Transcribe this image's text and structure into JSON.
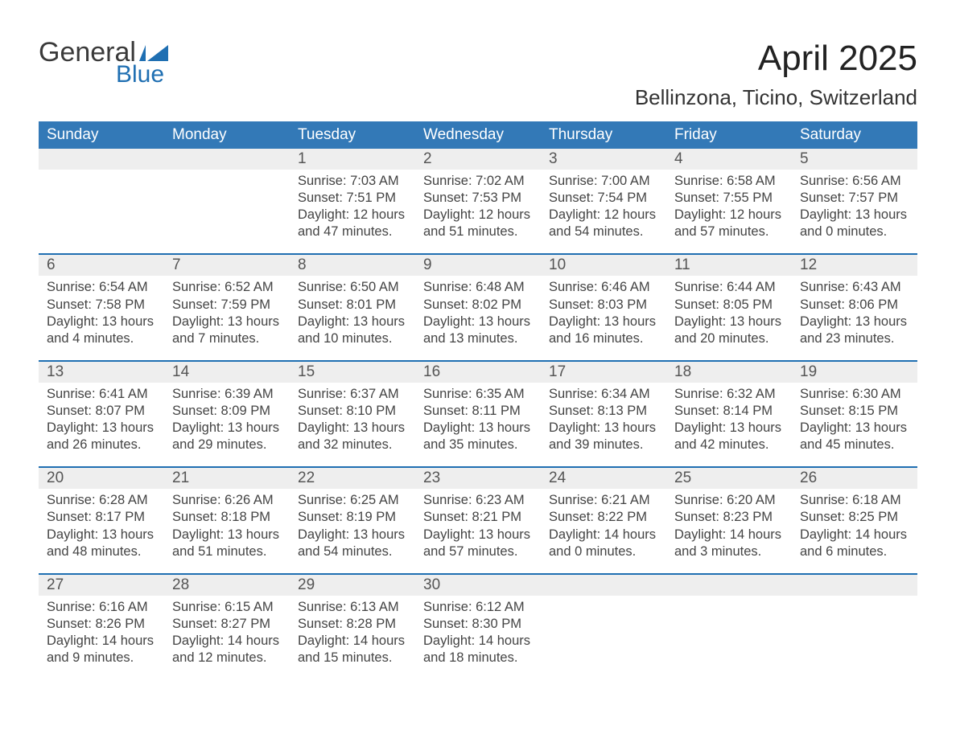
{
  "logo": {
    "general": "General",
    "blue": "Blue"
  },
  "title": "April 2025",
  "location": "Bellinzona, Ticino, Switzerland",
  "colors": {
    "header_blue": "#3379b7",
    "accent_blue": "#1f6fb2",
    "row_stripe": "#eeeeee",
    "logo_blue": "#1f6fb2",
    "logo_dark": "#3a3a3a"
  },
  "weekdays": [
    "Sunday",
    "Monday",
    "Tuesday",
    "Wednesday",
    "Thursday",
    "Friday",
    "Saturday"
  ],
  "weeks": [
    [
      null,
      null,
      {
        "n": "1",
        "sunrise": "Sunrise: 7:03 AM",
        "sunset": "Sunset: 7:51 PM",
        "day1": "Daylight: 12 hours",
        "day2": "and 47 minutes."
      },
      {
        "n": "2",
        "sunrise": "Sunrise: 7:02 AM",
        "sunset": "Sunset: 7:53 PM",
        "day1": "Daylight: 12 hours",
        "day2": "and 51 minutes."
      },
      {
        "n": "3",
        "sunrise": "Sunrise: 7:00 AM",
        "sunset": "Sunset: 7:54 PM",
        "day1": "Daylight: 12 hours",
        "day2": "and 54 minutes."
      },
      {
        "n": "4",
        "sunrise": "Sunrise: 6:58 AM",
        "sunset": "Sunset: 7:55 PM",
        "day1": "Daylight: 12 hours",
        "day2": "and 57 minutes."
      },
      {
        "n": "5",
        "sunrise": "Sunrise: 6:56 AM",
        "sunset": "Sunset: 7:57 PM",
        "day1": "Daylight: 13 hours",
        "day2": "and 0 minutes."
      }
    ],
    [
      {
        "n": "6",
        "sunrise": "Sunrise: 6:54 AM",
        "sunset": "Sunset: 7:58 PM",
        "day1": "Daylight: 13 hours",
        "day2": "and 4 minutes."
      },
      {
        "n": "7",
        "sunrise": "Sunrise: 6:52 AM",
        "sunset": "Sunset: 7:59 PM",
        "day1": "Daylight: 13 hours",
        "day2": "and 7 minutes."
      },
      {
        "n": "8",
        "sunrise": "Sunrise: 6:50 AM",
        "sunset": "Sunset: 8:01 PM",
        "day1": "Daylight: 13 hours",
        "day2": "and 10 minutes."
      },
      {
        "n": "9",
        "sunrise": "Sunrise: 6:48 AM",
        "sunset": "Sunset: 8:02 PM",
        "day1": "Daylight: 13 hours",
        "day2": "and 13 minutes."
      },
      {
        "n": "10",
        "sunrise": "Sunrise: 6:46 AM",
        "sunset": "Sunset: 8:03 PM",
        "day1": "Daylight: 13 hours",
        "day2": "and 16 minutes."
      },
      {
        "n": "11",
        "sunrise": "Sunrise: 6:44 AM",
        "sunset": "Sunset: 8:05 PM",
        "day1": "Daylight: 13 hours",
        "day2": "and 20 minutes."
      },
      {
        "n": "12",
        "sunrise": "Sunrise: 6:43 AM",
        "sunset": "Sunset: 8:06 PM",
        "day1": "Daylight: 13 hours",
        "day2": "and 23 minutes."
      }
    ],
    [
      {
        "n": "13",
        "sunrise": "Sunrise: 6:41 AM",
        "sunset": "Sunset: 8:07 PM",
        "day1": "Daylight: 13 hours",
        "day2": "and 26 minutes."
      },
      {
        "n": "14",
        "sunrise": "Sunrise: 6:39 AM",
        "sunset": "Sunset: 8:09 PM",
        "day1": "Daylight: 13 hours",
        "day2": "and 29 minutes."
      },
      {
        "n": "15",
        "sunrise": "Sunrise: 6:37 AM",
        "sunset": "Sunset: 8:10 PM",
        "day1": "Daylight: 13 hours",
        "day2": "and 32 minutes."
      },
      {
        "n": "16",
        "sunrise": "Sunrise: 6:35 AM",
        "sunset": "Sunset: 8:11 PM",
        "day1": "Daylight: 13 hours",
        "day2": "and 35 minutes."
      },
      {
        "n": "17",
        "sunrise": "Sunrise: 6:34 AM",
        "sunset": "Sunset: 8:13 PM",
        "day1": "Daylight: 13 hours",
        "day2": "and 39 minutes."
      },
      {
        "n": "18",
        "sunrise": "Sunrise: 6:32 AM",
        "sunset": "Sunset: 8:14 PM",
        "day1": "Daylight: 13 hours",
        "day2": "and 42 minutes."
      },
      {
        "n": "19",
        "sunrise": "Sunrise: 6:30 AM",
        "sunset": "Sunset: 8:15 PM",
        "day1": "Daylight: 13 hours",
        "day2": "and 45 minutes."
      }
    ],
    [
      {
        "n": "20",
        "sunrise": "Sunrise: 6:28 AM",
        "sunset": "Sunset: 8:17 PM",
        "day1": "Daylight: 13 hours",
        "day2": "and 48 minutes."
      },
      {
        "n": "21",
        "sunrise": "Sunrise: 6:26 AM",
        "sunset": "Sunset: 8:18 PM",
        "day1": "Daylight: 13 hours",
        "day2": "and 51 minutes."
      },
      {
        "n": "22",
        "sunrise": "Sunrise: 6:25 AM",
        "sunset": "Sunset: 8:19 PM",
        "day1": "Daylight: 13 hours",
        "day2": "and 54 minutes."
      },
      {
        "n": "23",
        "sunrise": "Sunrise: 6:23 AM",
        "sunset": "Sunset: 8:21 PM",
        "day1": "Daylight: 13 hours",
        "day2": "and 57 minutes."
      },
      {
        "n": "24",
        "sunrise": "Sunrise: 6:21 AM",
        "sunset": "Sunset: 8:22 PM",
        "day1": "Daylight: 14 hours",
        "day2": "and 0 minutes."
      },
      {
        "n": "25",
        "sunrise": "Sunrise: 6:20 AM",
        "sunset": "Sunset: 8:23 PM",
        "day1": "Daylight: 14 hours",
        "day2": "and 3 minutes."
      },
      {
        "n": "26",
        "sunrise": "Sunrise: 6:18 AM",
        "sunset": "Sunset: 8:25 PM",
        "day1": "Daylight: 14 hours",
        "day2": "and 6 minutes."
      }
    ],
    [
      {
        "n": "27",
        "sunrise": "Sunrise: 6:16 AM",
        "sunset": "Sunset: 8:26 PM",
        "day1": "Daylight: 14 hours",
        "day2": "and 9 minutes."
      },
      {
        "n": "28",
        "sunrise": "Sunrise: 6:15 AM",
        "sunset": "Sunset: 8:27 PM",
        "day1": "Daylight: 14 hours",
        "day2": "and 12 minutes."
      },
      {
        "n": "29",
        "sunrise": "Sunrise: 6:13 AM",
        "sunset": "Sunset: 8:28 PM",
        "day1": "Daylight: 14 hours",
        "day2": "and 15 minutes."
      },
      {
        "n": "30",
        "sunrise": "Sunrise: 6:12 AM",
        "sunset": "Sunset: 8:30 PM",
        "day1": "Daylight: 14 hours",
        "day2": "and 18 minutes."
      },
      null,
      null,
      null
    ]
  ]
}
